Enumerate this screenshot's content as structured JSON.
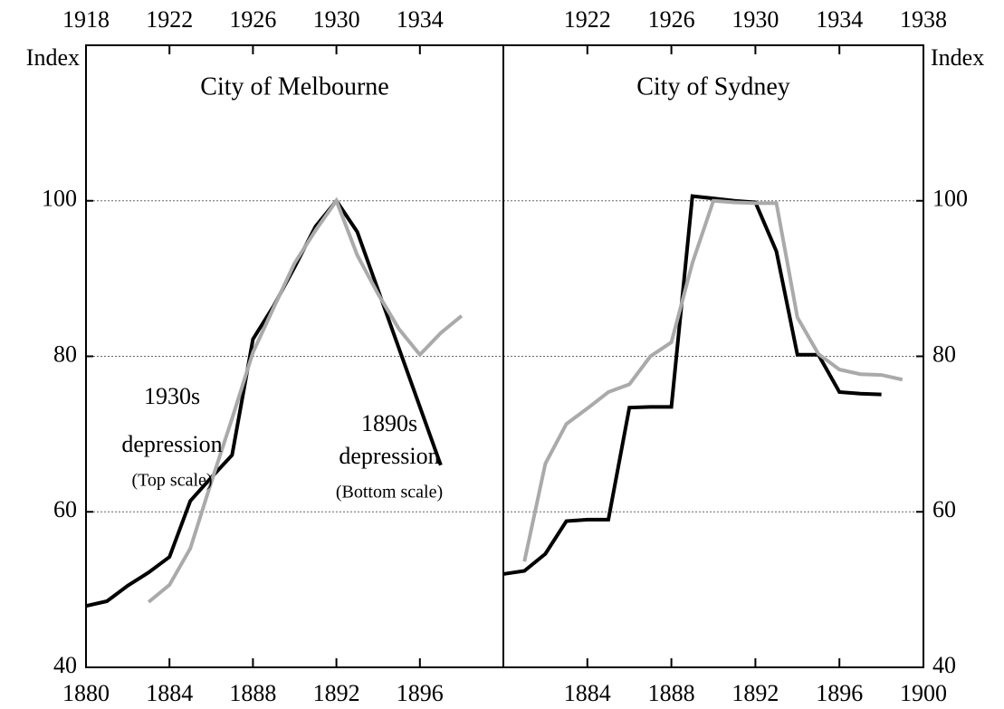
{
  "chart_data": [
    {
      "type": "line",
      "title": "City of Melbourne",
      "ylabel": "Index",
      "xlim": [
        1880,
        1900
      ],
      "xticks": [
        1880,
        1884,
        1888,
        1892,
        1896
      ],
      "x2lim": [
        1918,
        1938
      ],
      "x2ticks": [
        1918,
        1922,
        1926,
        1930,
        1934
      ],
      "ylim": [
        40,
        120
      ],
      "yticks": [
        40,
        60,
        80,
        100
      ],
      "grid": true,
      "series": [
        {
          "name": "1890s depression",
          "color": "#000000",
          "axis": "x",
          "x": [
            1880,
            1881,
            1882,
            1883,
            1884,
            1885,
            1886,
            1887,
            1888,
            1889,
            1890,
            1891,
            1892,
            1893,
            1894,
            1895,
            1896,
            1897
          ],
          "values": [
            47.9,
            48.5,
            50.5,
            52.2,
            54.2,
            61.4,
            64.4,
            67.3,
            82.2,
            86.5,
            91.5,
            96.7,
            100,
            96.0,
            88.5,
            81.0,
            73.5,
            66.0
          ]
        },
        {
          "name": "1930s depression",
          "color": "#aaaaaa",
          "axis": "x2",
          "x": [
            1921,
            1922,
            1923,
            1924,
            1925,
            1926,
            1927,
            1928,
            1929,
            1930,
            1931,
            1932,
            1933,
            1934,
            1935,
            1936
          ],
          "values": [
            48.4,
            50.6,
            55.3,
            63.8,
            72.0,
            80.5,
            86.3,
            92.0,
            96.2,
            100,
            93.0,
            88.0,
            83.5,
            80.2,
            83.0,
            85.2
          ]
        }
      ],
      "annotations": [
        {
          "lines": [
            "1930s",
            "depression",
            "(Top scale)"
          ]
        },
        {
          "lines": [
            "1890s",
            "depression",
            "(Bottom scale)"
          ]
        }
      ]
    },
    {
      "type": "line",
      "title": "City of Sydney",
      "ylabel": "Index",
      "xlim": [
        1880,
        1900
      ],
      "xticks": [
        1884,
        1888,
        1892,
        1896,
        1900
      ],
      "x2lim": [
        1918,
        1938
      ],
      "x2ticks": [
        1922,
        1926,
        1930,
        1934,
        1938
      ],
      "ylim": [
        40,
        120
      ],
      "yticks": [
        40,
        60,
        80,
        100
      ],
      "grid": true,
      "series": [
        {
          "name": "1890s depression",
          "color": "#000000",
          "axis": "x",
          "x": [
            1880,
            1881,
            1882,
            1883,
            1884,
            1885,
            1886,
            1887,
            1888,
            1889,
            1890,
            1891,
            1892,
            1893,
            1894,
            1895,
            1896,
            1897,
            1898
          ],
          "values": [
            52.0,
            52.4,
            54.6,
            58.8,
            59.0,
            59.0,
            73.4,
            73.5,
            73.5,
            100.6,
            100.3,
            100.0,
            99.8,
            93.5,
            80.2,
            80.2,
            75.4,
            75.2,
            75.1
          ]
        },
        {
          "name": "1930s depression",
          "color": "#aaaaaa",
          "axis": "x2",
          "x": [
            1919,
            1920,
            1921,
            1922,
            1923,
            1924,
            1925,
            1926,
            1927,
            1928,
            1929,
            1930,
            1931,
            1932,
            1933,
            1934,
            1935,
            1936,
            1937
          ],
          "values": [
            53.6,
            66.2,
            71.3,
            73.3,
            75.4,
            76.4,
            80.0,
            81.8,
            92.0,
            100.0,
            99.8,
            99.7,
            99.7,
            85.0,
            80.3,
            78.3,
            77.7,
            77.6,
            77.0
          ]
        }
      ]
    }
  ]
}
